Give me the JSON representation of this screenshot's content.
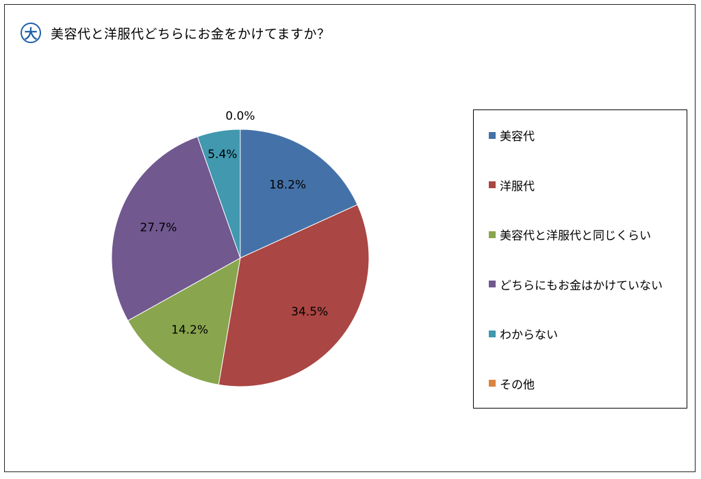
{
  "header": {
    "badge_char": "大",
    "badge_color": "#1f5fa8"
  },
  "chart_data": {
    "type": "pie",
    "title": "美容代と洋服代どちらにお金をかけてますか？",
    "categories": [
      "美容代",
      "洋服代",
      "美容代と洋服代と同じくらい",
      "どちらにもお金はかけていない",
      "わからない",
      "その他"
    ],
    "values": [
      18.2,
      34.5,
      14.2,
      27.7,
      5.4,
      0.0
    ],
    "labels": [
      "18.2%",
      "34.5%",
      "14.2%",
      "27.7%",
      "5.4%",
      "0.0%"
    ],
    "colors": [
      "#4472a8",
      "#aa4643",
      "#89a54e",
      "#71588f",
      "#4198af",
      "#db843d"
    ],
    "start_angle": "12 o'clock",
    "direction": "clockwise",
    "legend_position": "right"
  }
}
